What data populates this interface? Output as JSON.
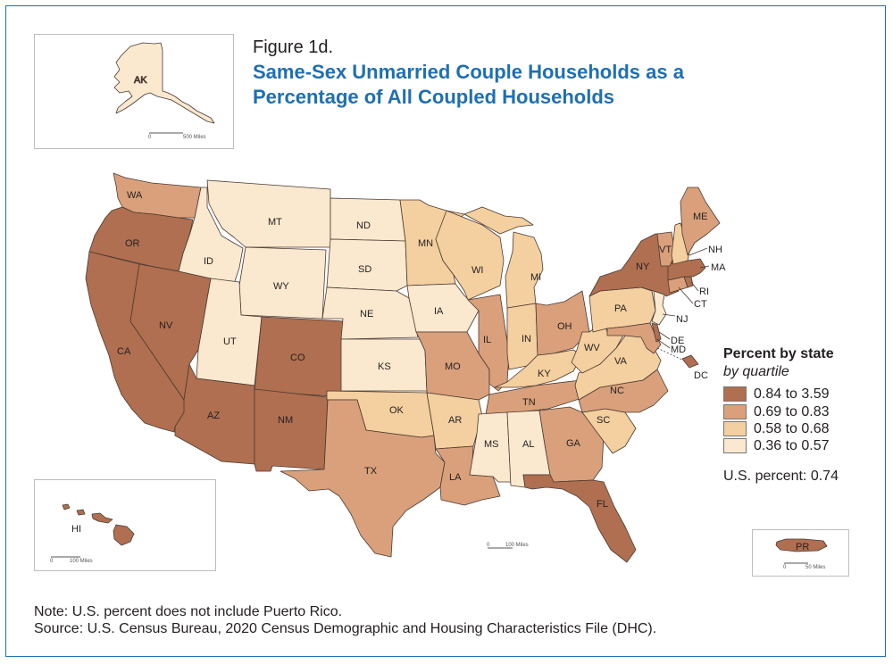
{
  "figure_label": "Figure 1d.",
  "title": "Same-Sex Unmarried Couple Households as a Percentage of All Coupled Households",
  "title_line1": "Same-Sex Unmarried Couple Households as a",
  "title_line2": "Percentage of All Coupled Households",
  "legend": {
    "title": "Percent by state",
    "subtitle": "by quartile",
    "items": [
      {
        "label": "0.84 to 3.59",
        "color": "#b06f50"
      },
      {
        "label": "0.69 to 0.83",
        "color": "#d9a07b"
      },
      {
        "label": "0.58 to 0.68",
        "color": "#f4cf9f"
      },
      {
        "label": "0.36 to 0.57",
        "color": "#fae8cf"
      }
    ]
  },
  "us_percent": "U.S. percent: 0.74",
  "note": "Note: U.S. percent does not include Puerto Rico.",
  "source": "Source: U.S. Census Bureau, 2020 Census Demographic and Housing Characteristics File (DHC).",
  "scales": {
    "alaska": "500 Miles",
    "mainland": "100 Miles",
    "hawaii": "100 Miles",
    "puerto_rico": "50 Miles",
    "zero": "0"
  },
  "states": {
    "AK": 4,
    "HI": 1,
    "PR": 1,
    "WA": 2,
    "OR": 1,
    "CA": 1,
    "NV": 1,
    "ID": 4,
    "MT": 4,
    "WY": 4,
    "UT": 4,
    "AZ": 1,
    "CO": 1,
    "NM": 1,
    "ND": 4,
    "SD": 4,
    "NE": 4,
    "KS": 4,
    "OK": 3,
    "TX": 2,
    "MN": 3,
    "IA": 4,
    "MO": 2,
    "AR": 3,
    "LA": 2,
    "WI": 3,
    "IL": 2,
    "MS": 4,
    "AL": 4,
    "MI": 3,
    "IN": 3,
    "KY": 3,
    "TN": 2,
    "OH": 2,
    "WV": 3,
    "VA": 3,
    "NC": 2,
    "SC": 3,
    "GA": 2,
    "FL": 1,
    "PA": 3,
    "NY": 1,
    "ME": 2,
    "VT": 2,
    "NH": 3,
    "MA": 1,
    "RI": 1,
    "CT": 2,
    "NJ": 4,
    "DE": 1,
    "MD": 2,
    "DC": 1
  }
}
